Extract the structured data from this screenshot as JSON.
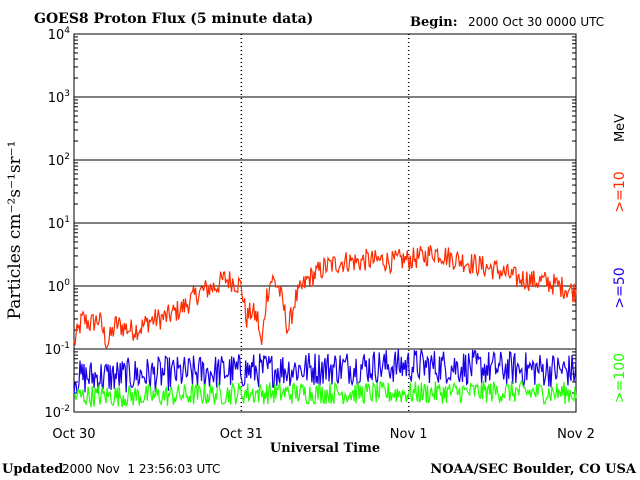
{
  "chart_data": {
    "type": "line",
    "title": "GOES8 Proton Flux (5 minute data)",
    "begin_label": "Begin:",
    "begin_value": "2000 Oct 30 0000 UTC",
    "ylabel": "Particles cm⁻²s⁻¹sr⁻¹",
    "xlabel": "Universal Time",
    "y_scale": "log",
    "ylim": [
      0.01,
      10000
    ],
    "xlim_days": [
      0,
      3
    ],
    "x_ticks": [
      {
        "day": 0,
        "label": "Oct 30"
      },
      {
        "day": 1,
        "label": "Oct 31"
      },
      {
        "day": 2,
        "label": "Nov 1"
      },
      {
        "day": 3,
        "label": "Nov 2"
      }
    ],
    "y_tick_labels": [
      {
        "base": "10",
        "exp": "4",
        "value": 10000
      },
      {
        "base": "10",
        "exp": "3",
        "value": 1000
      },
      {
        "base": "10",
        "exp": "2",
        "value": 100
      },
      {
        "base": "10",
        "exp": "1",
        "value": 10
      },
      {
        "base": "10",
        "exp": "0",
        "value": 1
      },
      {
        "base": "10",
        "exp": "-1",
        "value": 0.1
      },
      {
        "base": "10",
        "exp": "-2",
        "value": 0.01
      }
    ],
    "grid": "horizontal lines at each decade",
    "legend_position": "right",
    "legend_unit": "MeV",
    "series": [
      {
        "name": ">=10",
        "color": "#ff2a00",
        "points": [
          [
            0.0,
            0.12
          ],
          [
            0.05,
            0.3
          ],
          [
            0.1,
            0.25
          ],
          [
            0.15,
            0.3
          ],
          [
            0.2,
            0.12
          ],
          [
            0.25,
            0.25
          ],
          [
            0.3,
            0.22
          ],
          [
            0.35,
            0.2
          ],
          [
            0.4,
            0.22
          ],
          [
            0.45,
            0.28
          ],
          [
            0.5,
            0.3
          ],
          [
            0.55,
            0.32
          ],
          [
            0.6,
            0.38
          ],
          [
            0.65,
            0.45
          ],
          [
            0.7,
            0.6
          ],
          [
            0.75,
            0.8
          ],
          [
            0.8,
            0.9
          ],
          [
            0.85,
            1.0
          ],
          [
            0.9,
            1.3
          ],
          [
            0.95,
            1.2
          ],
          [
            1.0,
            1.0
          ],
          [
            1.03,
            0.3
          ],
          [
            1.06,
            0.4
          ],
          [
            1.1,
            0.3
          ],
          [
            1.12,
            0.1
          ],
          [
            1.15,
            0.7
          ],
          [
            1.18,
            1.3
          ],
          [
            1.22,
            1.0
          ],
          [
            1.25,
            0.5
          ],
          [
            1.28,
            0.2
          ],
          [
            1.32,
            0.6
          ],
          [
            1.36,
            0.9
          ],
          [
            1.4,
            1.3
          ],
          [
            1.45,
            1.6
          ],
          [
            1.5,
            2.0
          ],
          [
            1.55,
            2.2
          ],
          [
            1.6,
            2.4
          ],
          [
            1.65,
            2.5
          ],
          [
            1.7,
            2.4
          ],
          [
            1.75,
            2.6
          ],
          [
            1.8,
            2.5
          ],
          [
            1.85,
            2.6
          ],
          [
            1.9,
            2.4
          ],
          [
            1.95,
            2.6
          ],
          [
            2.0,
            2.6
          ],
          [
            2.05,
            2.8
          ],
          [
            2.1,
            3.0
          ],
          [
            2.15,
            3.5
          ],
          [
            2.2,
            3.2
          ],
          [
            2.25,
            2.8
          ],
          [
            2.3,
            2.6
          ],
          [
            2.35,
            2.4
          ],
          [
            2.4,
            2.2
          ],
          [
            2.45,
            2.0
          ],
          [
            2.5,
            1.9
          ],
          [
            2.55,
            1.7
          ],
          [
            2.6,
            1.5
          ],
          [
            2.65,
            1.3
          ],
          [
            2.7,
            1.3
          ],
          [
            2.75,
            1.2
          ],
          [
            2.8,
            1.2
          ],
          [
            2.85,
            1.1
          ],
          [
            2.9,
            1.0
          ],
          [
            2.95,
            0.9
          ],
          [
            3.0,
            0.8
          ]
        ]
      },
      {
        "name": ">=50",
        "color": "#1a00e6",
        "points": [
          [
            0.0,
            0.035
          ],
          [
            0.5,
            0.04
          ],
          [
            1.0,
            0.045
          ],
          [
            1.5,
            0.05
          ],
          [
            2.0,
            0.055
          ],
          [
            2.5,
            0.05
          ],
          [
            3.0,
            0.045
          ]
        ]
      },
      {
        "name": ">=100",
        "color": "#22ff00",
        "points": [
          [
            0.0,
            0.018
          ],
          [
            0.5,
            0.018
          ],
          [
            1.0,
            0.02
          ],
          [
            1.5,
            0.02
          ],
          [
            2.0,
            0.02
          ],
          [
            2.5,
            0.021
          ],
          [
            3.0,
            0.02
          ]
        ]
      }
    ]
  },
  "footer": {
    "updated_label": "Updated",
    "updated_value": "2000 Nov  1 23:56:03 UTC",
    "credit": "NOAA/SEC Boulder, CO USA"
  }
}
